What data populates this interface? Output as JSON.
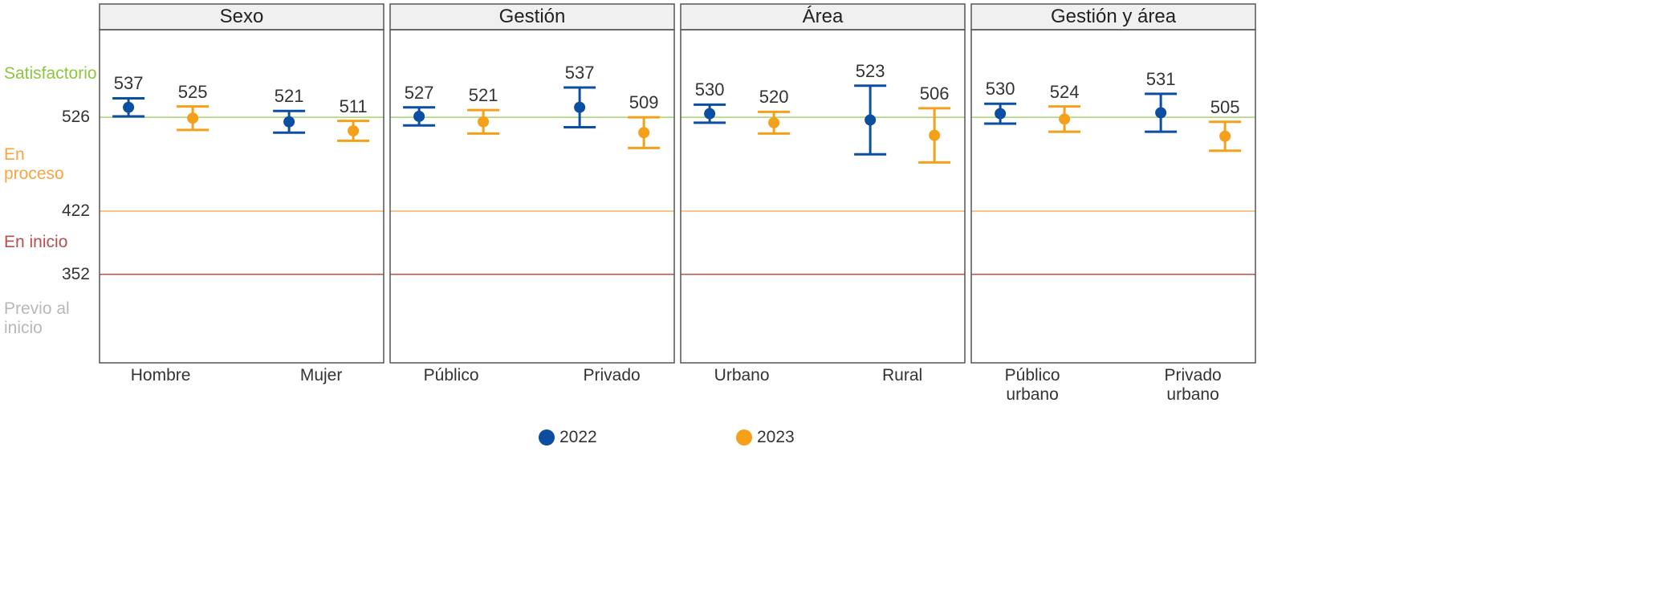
{
  "chart_data": [
    {
      "type": "errorbar",
      "title": "Sexo",
      "categories": [
        "Hombre",
        "Mujer"
      ],
      "series": [
        {
          "name": "2022",
          "color": "#0b4ea2",
          "values": [
            537,
            521
          ],
          "errors": [
            10,
            12
          ]
        },
        {
          "name": "2023",
          "color": "#f5a01a",
          "values": [
            525,
            511
          ],
          "errors": [
            13,
            11
          ]
        }
      ],
      "ylim": [
        254,
        623
      ],
      "yticks": [
        352,
        422,
        526
      ],
      "threshold_colors": [
        "#c0504d",
        "#f6b26b",
        "#a6d46a"
      ],
      "levels": [
        {
          "label": "Satisfactorio",
          "color": "#8dc63f"
        },
        {
          "label": "En proceso",
          "color": "#f7a541"
        },
        {
          "label": "En inicio",
          "color": "#b5504f"
        },
        {
          "label": "Previo al inicio",
          "color": "#b8b8b8"
        }
      ]
    },
    {
      "type": "errorbar",
      "title": "Gestión",
      "categories": [
        "Público",
        "Privado"
      ],
      "series": [
        {
          "name": "2022",
          "color": "#0b4ea2",
          "values": [
            527,
            537
          ],
          "errors": [
            10,
            22
          ]
        },
        {
          "name": "2023",
          "color": "#f5a01a",
          "values": [
            521,
            509
          ],
          "errors": [
            13,
            17
          ]
        }
      ],
      "ylim": [
        254,
        623
      ],
      "yticks": [
        352,
        422,
        526
      ],
      "threshold_colors": [
        "#c0504d",
        "#f6b26b",
        "#a6d46a"
      ]
    },
    {
      "type": "errorbar",
      "title": "Área",
      "categories": [
        "Urbano",
        "Rural"
      ],
      "series": [
        {
          "name": "2022",
          "color": "#0b4ea2",
          "values": [
            530,
            523
          ],
          "errors": [
            10,
            38
          ]
        },
        {
          "name": "2023",
          "color": "#f5a01a",
          "values": [
            520,
            506
          ],
          "errors": [
            12,
            30
          ]
        }
      ],
      "ylim": [
        254,
        623
      ],
      "yticks": [
        352,
        422,
        526
      ],
      "threshold_colors": [
        "#c0504d",
        "#f6b26b",
        "#a6d46a"
      ]
    },
    {
      "type": "errorbar",
      "title": "Gestión y área",
      "categories": [
        "Público urbano",
        "Privado urbano"
      ],
      "series": [
        {
          "name": "2022",
          "color": "#0b4ea2",
          "values": [
            530,
            531
          ],
          "errors": [
            11,
            21
          ]
        },
        {
          "name": "2023",
          "color": "#f5a01a",
          "values": [
            524,
            505
          ],
          "errors": [
            14,
            16
          ]
        }
      ],
      "ylim": [
        254,
        623
      ],
      "yticks": [
        352,
        422,
        526
      ],
      "threshold_colors": [
        "#c0504d",
        "#f6b26b",
        "#a6d46a"
      ]
    }
  ]
}
